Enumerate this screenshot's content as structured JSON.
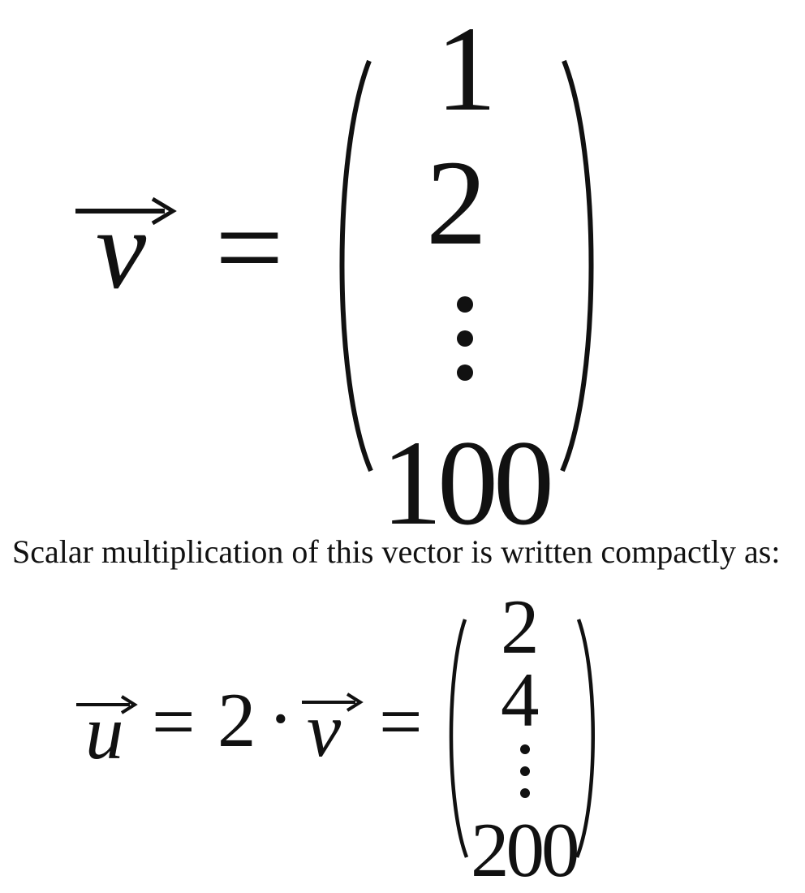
{
  "equation1": {
    "lhs_symbol": "v",
    "equals": "=",
    "entries": [
      "1",
      "2",
      "100"
    ]
  },
  "paragraph": "Scalar multiplication of this vector is written compactly as:",
  "equation2": {
    "lhs_symbol": "u",
    "equals": "=",
    "scalar": "2",
    "dot": "·",
    "vector_symbol": "v",
    "entries": [
      "2",
      "4",
      "200"
    ]
  }
}
